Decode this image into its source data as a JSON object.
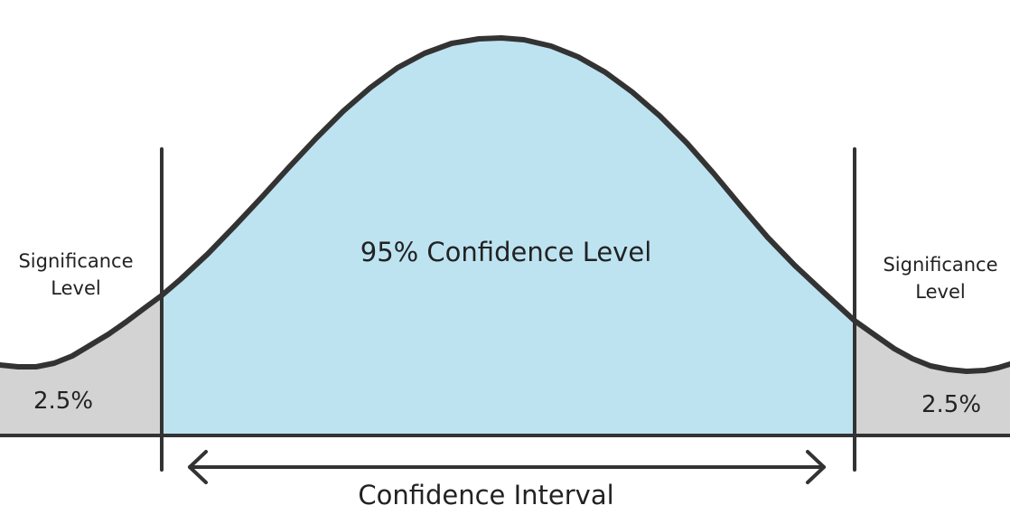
{
  "labels": {
    "center_region": "95% Confidence Level",
    "left_significance_line1": "Significance",
    "left_significance_line2": "Level",
    "right_significance_line1": "Significance",
    "right_significance_line2": "Level",
    "left_tail_percent": "2.5%",
    "right_tail_percent": "2.5%",
    "interval": "Confidence Interval"
  },
  "colors": {
    "center_fill": "#bde3f1",
    "tail_fill": "#d3d3d3",
    "stroke": "#333333",
    "text": "#222222"
  },
  "distribution": {
    "confidence_level_percent": 95,
    "left_tail_percent": 2.5,
    "right_tail_percent": 2.5
  }
}
